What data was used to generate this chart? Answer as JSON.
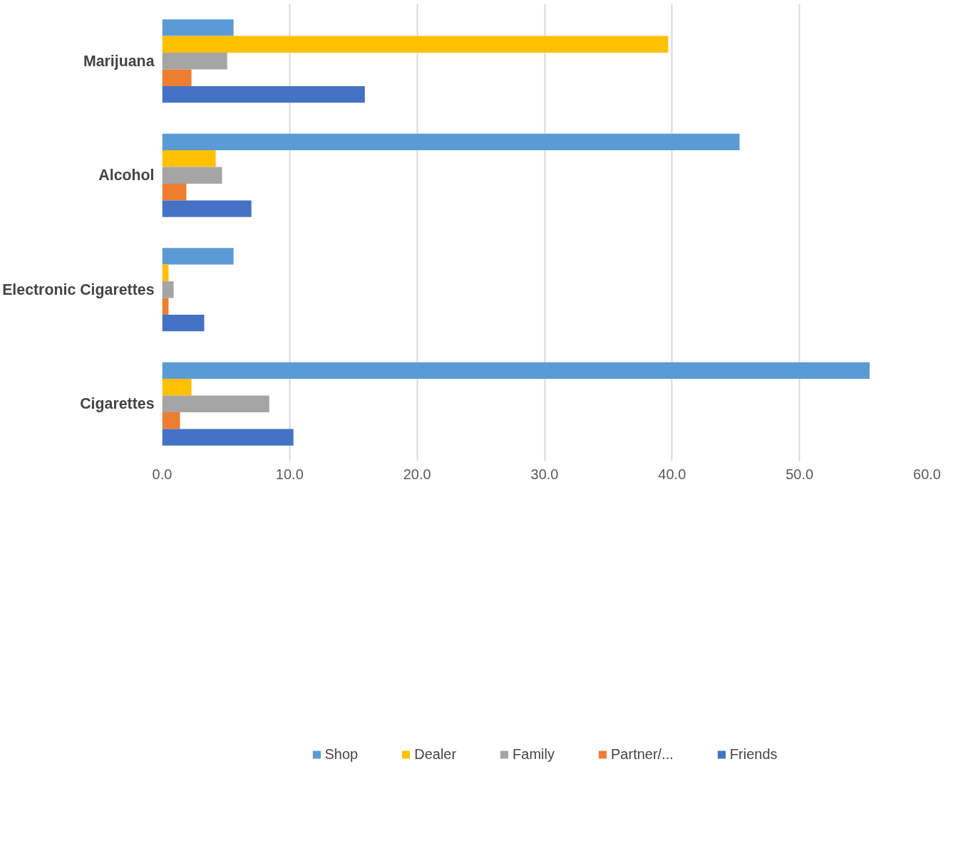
{
  "chart_data": {
    "type": "bar",
    "orientation": "horizontal",
    "categories": [
      "Marijuana",
      "Alcohol",
      "Electronic Cigarettes",
      "Cigarettes"
    ],
    "series": [
      {
        "name": "Shop",
        "color": "#5b9bd5",
        "values": [
          5.6,
          45.3,
          5.6,
          55.5
        ]
      },
      {
        "name": "Dealer",
        "color": "#ffc000",
        "values": [
          39.7,
          4.2,
          0.5,
          2.3
        ]
      },
      {
        "name": "Family",
        "color": "#a5a5a5",
        "values": [
          5.1,
          4.7,
          0.9,
          8.4
        ]
      },
      {
        "name": "Partner/...",
        "color": "#ed7d31",
        "values": [
          2.3,
          1.9,
          0.5,
          1.4
        ]
      },
      {
        "name": "Friends",
        "color": "#4472c4",
        "values": [
          15.9,
          7.0,
          3.3,
          10.3
        ]
      }
    ],
    "xlim": [
      0,
      60
    ],
    "xticks": [
      {
        "value": 0,
        "label": "0.0"
      },
      {
        "value": 10,
        "label": "10.0"
      },
      {
        "value": 20,
        "label": "20.0"
      },
      {
        "value": 30,
        "label": "30.0"
      },
      {
        "value": 40,
        "label": "40.0"
      },
      {
        "value": 50,
        "label": "50.0"
      },
      {
        "value": 60,
        "label": "60.0"
      }
    ],
    "grid": "x",
    "legend": "bottom"
  }
}
